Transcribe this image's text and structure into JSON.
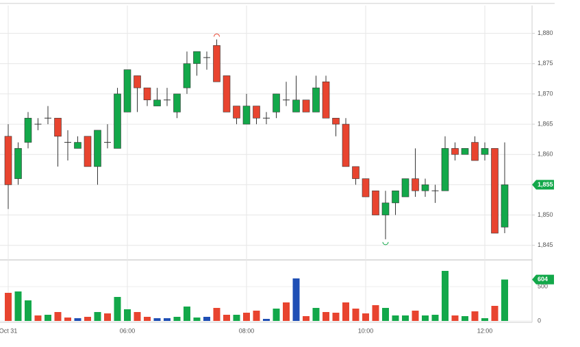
{
  "chart_data": {
    "type": "candlestick",
    "categories": [
      "Oct 31",
      null,
      null,
      null,
      null,
      null,
      null,
      null,
      null,
      null,
      null,
      null,
      "06:00",
      null,
      null,
      null,
      null,
      null,
      null,
      null,
      null,
      null,
      null,
      null,
      "08:00",
      null,
      null,
      null,
      null,
      null,
      null,
      null,
      null,
      null,
      null,
      null,
      "10:00",
      null,
      null,
      null,
      null,
      null,
      null,
      null,
      null,
      null,
      null,
      null,
      "12:00",
      null,
      null
    ],
    "open": [
      1863,
      1856,
      1862,
      1865,
      1866,
      1866,
      1862,
      1861,
      1863,
      1858,
      1862,
      1861,
      1867,
      1873,
      1871,
      1868,
      1869,
      1867,
      1871,
      1875,
      1876,
      1878,
      1873,
      1868,
      1865,
      1868,
      1866,
      1867,
      1869,
      1867,
      1869,
      1867,
      1872,
      1866,
      1865,
      1858,
      1856,
      1854,
      1850,
      1852,
      1853,
      1856,
      1854,
      1854,
      1854,
      1861,
      1860,
      1862,
      1860,
      1861,
      1848
    ],
    "high": [
      1865,
      1862,
      1867,
      1866,
      1868,
      1866,
      1864,
      1863,
      1863,
      1864,
      1865,
      1871,
      1874,
      1873,
      1871,
      1871,
      1871,
      1870,
      1877,
      1877,
      1877,
      1879,
      1873,
      1868,
      1870,
      1868,
      1867,
      1870,
      1872,
      1873,
      1869,
      1873,
      1873,
      1866,
      1866,
      1858,
      1856,
      1854,
      1854,
      1854,
      1856,
      1861,
      1856,
      1855,
      1863,
      1862,
      1861,
      1863,
      1862,
      1861,
      1862
    ],
    "low": [
      1851,
      1855,
      1861,
      1864,
      1865,
      1858,
      1859,
      1861,
      1858,
      1855,
      1861,
      1861,
      1867,
      1867,
      1868,
      1868,
      1868,
      1866,
      1870,
      1873,
      1874,
      1872,
      1867,
      1865,
      1865,
      1865,
      1865,
      1866,
      1868,
      1867,
      1867,
      1867,
      1866,
      1863,
      1858,
      1855,
      1853,
      1850,
      1846,
      1850,
      1853,
      1853,
      1853,
      1852,
      1854,
      1859,
      1860,
      1859,
      1859,
      1847,
      1847
    ],
    "close": [
      1855,
      1861,
      1866,
      1865,
      1866,
      1863,
      1862,
      1862,
      1858,
      1864,
      1862,
      1870,
      1874,
      1871,
      1869,
      1869,
      1869,
      1870,
      1875,
      1877,
      1876,
      1872,
      1867,
      1866,
      1868,
      1866,
      1866,
      1870,
      1869,
      1869,
      1867,
      1871,
      1866,
      1865,
      1858,
      1856,
      1853,
      1850,
      1852,
      1854,
      1856,
      1854,
      1855,
      1854,
      1861,
      1860,
      1861,
      1859,
      1861,
      1847,
      1855
    ],
    "up_color": "#13a84a",
    "down_color": "#e8442f",
    "ylim": [
      1842.7,
      1884.6
    ],
    "yticks": [
      {
        "value": 1845,
        "label": "1,845"
      },
      {
        "value": 1850,
        "label": "1,850"
      },
      {
        "value": 1855,
        "label": "1,855"
      },
      {
        "value": 1860,
        "label": "1,860"
      },
      {
        "value": 1865,
        "label": "1,865"
      },
      {
        "value": 1870,
        "label": "1,870"
      },
      {
        "value": 1875,
        "label": "1,875"
      },
      {
        "value": 1880,
        "label": "1,880"
      }
    ],
    "grid": true,
    "last_price": {
      "value": 1855,
      "label": "1,855"
    },
    "volume": {
      "values": [
        410,
        430,
        300,
        80,
        90,
        130,
        50,
        40,
        60,
        130,
        110,
        350,
        170,
        130,
        60,
        40,
        40,
        60,
        210,
        50,
        60,
        190,
        90,
        90,
        120,
        150,
        30,
        180,
        270,
        620,
        70,
        190,
        130,
        120,
        270,
        180,
        110,
        230,
        190,
        80,
        80,
        150,
        80,
        90,
        730,
        80,
        70,
        140,
        40,
        220,
        604
      ],
      "colors": [
        "#e8442f",
        "#13a84a",
        "#13a84a",
        "#e8442f",
        "#13a84a",
        "#e8442f",
        "#e8442f",
        "#1f4fb5",
        "#e8442f",
        "#13a84a",
        "#e8442f",
        "#13a84a",
        "#13a84a",
        "#e8442f",
        "#e8442f",
        "#1f4fb5",
        "#1f4fb5",
        "#13a84a",
        "#13a84a",
        "#13a84a",
        "#1f4fb5",
        "#e8442f",
        "#e8442f",
        "#13a84a",
        "#e8442f",
        "#e8442f",
        "#1f4fb5",
        "#13a84a",
        "#e8442f",
        "#1f4fb5",
        "#e8442f",
        "#13a84a",
        "#e8442f",
        "#e8442f",
        "#e8442f",
        "#e8442f",
        "#e8442f",
        "#e8442f",
        "#13a84a",
        "#13a84a",
        "#13a84a",
        "#e8442f",
        "#13a84a",
        "#13a84a",
        "#13a84a",
        "#e8442f",
        "#13a84a",
        "#e8442f",
        "#13a84a",
        "#e8442f",
        "#13a84a"
      ],
      "ylim": [
        0,
        870
      ],
      "yticks": [
        0,
        500
      ],
      "last": {
        "value": 604,
        "label": "604"
      }
    }
  }
}
